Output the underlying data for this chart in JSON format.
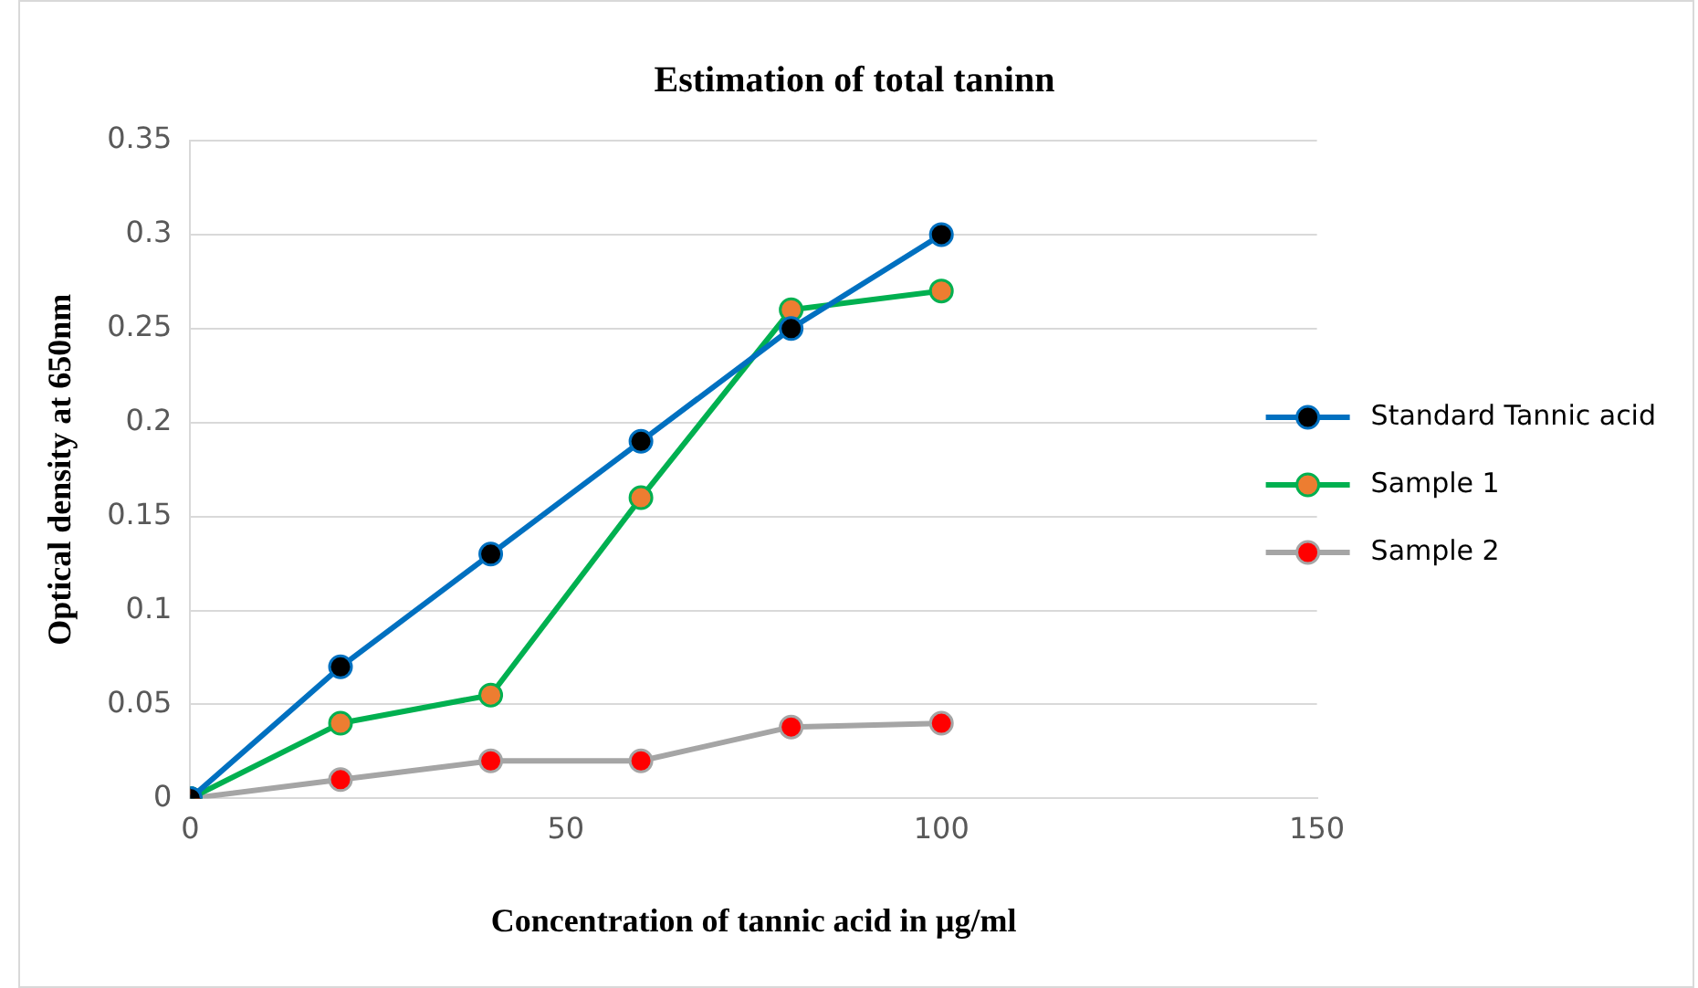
{
  "chart_data": {
    "type": "line",
    "title": "Estimation of total taninn",
    "xlabel": "Concentration of tannic acid in µg/ml",
    "ylabel": "Optical density at 650nm",
    "x": [
      0,
      20,
      40,
      60,
      80,
      100
    ],
    "series": [
      {
        "name": "Standard Tannic acid",
        "color": "#0070c0",
        "colors": [
          "#000000",
          "#000000",
          "#000000",
          "#000000",
          "#000000",
          "#000000"
        ],
        "values": [
          0,
          0.07,
          0.13,
          0.19,
          0.25,
          0.3
        ]
      },
      {
        "name": "Sample 1",
        "color": "#00b050",
        "colors": [
          "#ed7d31",
          "#ed7d31",
          "#ed7d31",
          "#ed7d31",
          "#ed7d31",
          "#ed7d31"
        ],
        "values": [
          0,
          0.04,
          0.055,
          0.16,
          0.26,
          0.27
        ]
      },
      {
        "name": "Sample 2",
        "color": "#a5a5a5",
        "colors": [
          "#ff0000",
          "#ff0000",
          "#ff0000",
          "#ff0000",
          "#ff0000",
          "#ff0000"
        ],
        "values": [
          0,
          0.01,
          0.02,
          0.02,
          0.038,
          0.04
        ]
      }
    ],
    "xlim": [
      0,
      150
    ],
    "xticks": [
      0,
      50,
      100,
      150
    ],
    "ylim": [
      0,
      0.35
    ],
    "yticks": [
      0,
      0.05,
      0.1,
      0.15,
      0.2,
      0.25,
      0.3,
      0.35
    ],
    "grid": "y",
    "legend": "right",
    "marker": "circle",
    "line_style": "solid"
  }
}
